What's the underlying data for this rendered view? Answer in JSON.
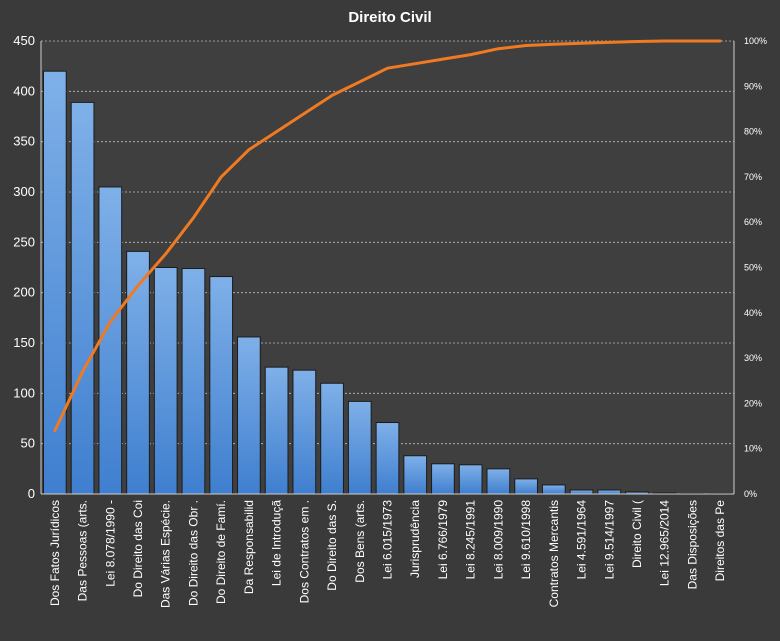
{
  "chart_data": {
    "type": "bar",
    "title": "Direito  Civil",
    "xlabel": "",
    "ylabel": "",
    "ylim": [
      0,
      450
    ],
    "y2lim": [
      0,
      100
    ],
    "grid": true,
    "legend": "none",
    "left_ticks": [
      "0",
      "50",
      "100",
      "150",
      "200",
      "250",
      "300",
      "350",
      "400",
      "450"
    ],
    "right_ticks": [
      "0%",
      "10%",
      "20%",
      "30%",
      "40%",
      "50%",
      "60%",
      "70%",
      "80%",
      "90%",
      "100%"
    ],
    "categories": [
      "Dos Fatos Jurídicos",
      "Das Pessoas (arts.",
      "Lei 8.078/1990 -",
      "Do Direito das Coi",
      "Das Várias Espécie.",
      "Do Direito das Obr .",
      "Do Direito de Famí.",
      "Da Responsabilid",
      "Lei de Introduçã",
      "Dos Contratos em .",
      "Do Direito das S.",
      "Dos Bens (arts.",
      "Lei 6.015/1973",
      "Jurisprudência",
      "Lei 6.766/1979",
      "Lei 8.245/1991",
      "Lei 8.009/1990",
      "Lei 9.610/1998",
      "Contratos Mercantis",
      "Lei 4.591/1964",
      "Lei 9.514/1997",
      "Direito Civil (",
      "Lei 12.965/2014",
      "Das Disposições",
      "Direitos das Pe"
    ],
    "series": [
      {
        "kind": "bar",
        "axis": "left",
        "values": [
          420,
          389,
          305,
          241,
          225,
          224,
          216,
          156,
          126,
          123,
          110,
          92,
          71,
          38,
          30,
          29,
          25,
          15,
          9,
          4,
          4,
          2,
          1,
          0.5,
          0.3
        ]
      },
      {
        "kind": "line",
        "axis": "right",
        "values": [
          14,
          27,
          38,
          46,
          53,
          61,
          70,
          76,
          80,
          84,
          88,
          91,
          94,
          95,
          96,
          97,
          98.3,
          99,
          99.3,
          99.5,
          99.7,
          99.9,
          100,
          100,
          100
        ]
      }
    ],
    "colors": {
      "background": "#3a3a3a",
      "plot_area": "#3f3f3f",
      "bar_fill_top": "#7fb0e8",
      "bar_fill_bottom": "#3f7fcf",
      "bar_stroke": "#1c1c1c",
      "line": "#f07a22",
      "grid": "#bdbdbd",
      "text": "#ffffff"
    }
  }
}
